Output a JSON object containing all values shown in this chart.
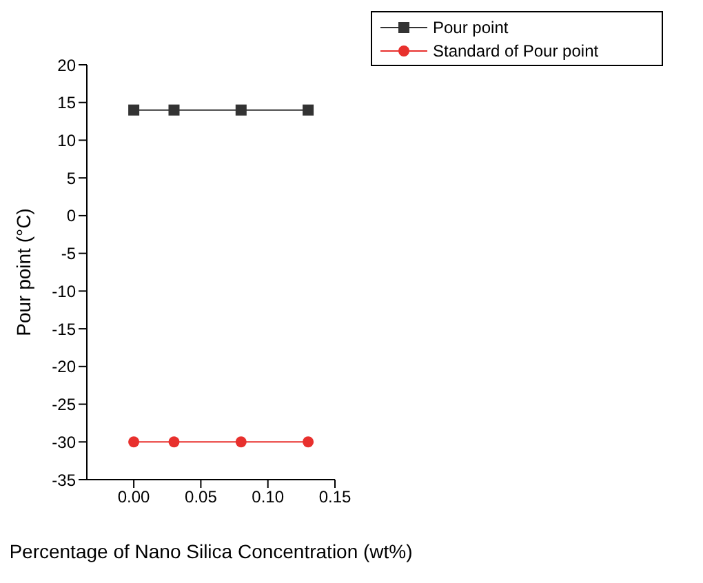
{
  "chart_data": {
    "type": "line",
    "xlabel": "Percentage of Nano Silica Concentration (wt%)",
    "ylabel": "Pour point (°C)",
    "x": [
      0,
      0.03,
      0.08,
      0.13
    ],
    "series": [
      {
        "name": "Pour point",
        "color": "#333333",
        "marker": "square",
        "values": [
          14,
          14,
          14,
          14
        ]
      },
      {
        "name": "Standard of Pour point",
        "color": "#e8302d",
        "marker": "circle",
        "values": [
          -30,
          -30,
          -30,
          -30
        ]
      }
    ],
    "xlim": [
      -0.035,
      0.15
    ],
    "xticks": [
      {
        "value": 0,
        "label": "0.00"
      },
      {
        "value": 0.05,
        "label": "0.05"
      },
      {
        "value": 0.1,
        "label": "0.10"
      },
      {
        "value": 0.15,
        "label": "0.15"
      }
    ],
    "ylim": [
      -35,
      20
    ],
    "yticks": [
      -35,
      -30,
      -25,
      -20,
      -15,
      -10,
      -5,
      0,
      5,
      10,
      15,
      20
    ],
    "grid": false,
    "legend": "top right"
  }
}
